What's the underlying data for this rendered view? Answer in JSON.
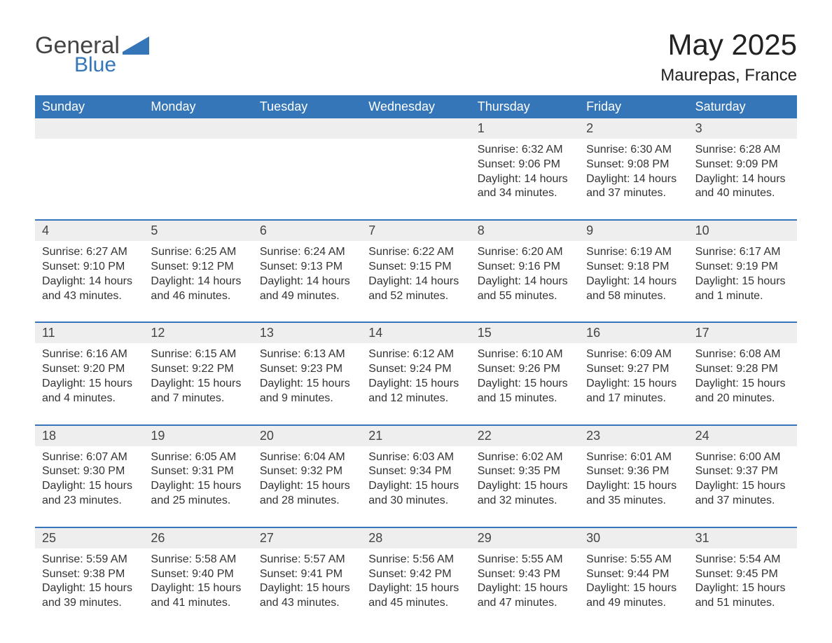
{
  "logo": {
    "general": "General",
    "blue": "Blue"
  },
  "title": "May 2025",
  "location": "Maurepas, France",
  "colors": {
    "header_bg": "#3576b8",
    "header_text": "#ffffff",
    "num_strip_bg": "#eeeeee",
    "rule": "#3576b8",
    "body_text": "#333333",
    "background": "#ffffff"
  },
  "day_names": [
    "Sunday",
    "Monday",
    "Tuesday",
    "Wednesday",
    "Thursday",
    "Friday",
    "Saturday"
  ],
  "weeks": [
    {
      "days": [
        {
          "num": "",
          "sunrise": "",
          "sunset": "",
          "daylight": ""
        },
        {
          "num": "",
          "sunrise": "",
          "sunset": "",
          "daylight": ""
        },
        {
          "num": "",
          "sunrise": "",
          "sunset": "",
          "daylight": ""
        },
        {
          "num": "",
          "sunrise": "",
          "sunset": "",
          "daylight": ""
        },
        {
          "num": "1",
          "sunrise": "Sunrise: 6:32 AM",
          "sunset": "Sunset: 9:06 PM",
          "daylight": "Daylight: 14 hours and 34 minutes."
        },
        {
          "num": "2",
          "sunrise": "Sunrise: 6:30 AM",
          "sunset": "Sunset: 9:08 PM",
          "daylight": "Daylight: 14 hours and 37 minutes."
        },
        {
          "num": "3",
          "sunrise": "Sunrise: 6:28 AM",
          "sunset": "Sunset: 9:09 PM",
          "daylight": "Daylight: 14 hours and 40 minutes."
        }
      ]
    },
    {
      "days": [
        {
          "num": "4",
          "sunrise": "Sunrise: 6:27 AM",
          "sunset": "Sunset: 9:10 PM",
          "daylight": "Daylight: 14 hours and 43 minutes."
        },
        {
          "num": "5",
          "sunrise": "Sunrise: 6:25 AM",
          "sunset": "Sunset: 9:12 PM",
          "daylight": "Daylight: 14 hours and 46 minutes."
        },
        {
          "num": "6",
          "sunrise": "Sunrise: 6:24 AM",
          "sunset": "Sunset: 9:13 PM",
          "daylight": "Daylight: 14 hours and 49 minutes."
        },
        {
          "num": "7",
          "sunrise": "Sunrise: 6:22 AM",
          "sunset": "Sunset: 9:15 PM",
          "daylight": "Daylight: 14 hours and 52 minutes."
        },
        {
          "num": "8",
          "sunrise": "Sunrise: 6:20 AM",
          "sunset": "Sunset: 9:16 PM",
          "daylight": "Daylight: 14 hours and 55 minutes."
        },
        {
          "num": "9",
          "sunrise": "Sunrise: 6:19 AM",
          "sunset": "Sunset: 9:18 PM",
          "daylight": "Daylight: 14 hours and 58 minutes."
        },
        {
          "num": "10",
          "sunrise": "Sunrise: 6:17 AM",
          "sunset": "Sunset: 9:19 PM",
          "daylight": "Daylight: 15 hours and 1 minute."
        }
      ]
    },
    {
      "days": [
        {
          "num": "11",
          "sunrise": "Sunrise: 6:16 AM",
          "sunset": "Sunset: 9:20 PM",
          "daylight": "Daylight: 15 hours and 4 minutes."
        },
        {
          "num": "12",
          "sunrise": "Sunrise: 6:15 AM",
          "sunset": "Sunset: 9:22 PM",
          "daylight": "Daylight: 15 hours and 7 minutes."
        },
        {
          "num": "13",
          "sunrise": "Sunrise: 6:13 AM",
          "sunset": "Sunset: 9:23 PM",
          "daylight": "Daylight: 15 hours and 9 minutes."
        },
        {
          "num": "14",
          "sunrise": "Sunrise: 6:12 AM",
          "sunset": "Sunset: 9:24 PM",
          "daylight": "Daylight: 15 hours and 12 minutes."
        },
        {
          "num": "15",
          "sunrise": "Sunrise: 6:10 AM",
          "sunset": "Sunset: 9:26 PM",
          "daylight": "Daylight: 15 hours and 15 minutes."
        },
        {
          "num": "16",
          "sunrise": "Sunrise: 6:09 AM",
          "sunset": "Sunset: 9:27 PM",
          "daylight": "Daylight: 15 hours and 17 minutes."
        },
        {
          "num": "17",
          "sunrise": "Sunrise: 6:08 AM",
          "sunset": "Sunset: 9:28 PM",
          "daylight": "Daylight: 15 hours and 20 minutes."
        }
      ]
    },
    {
      "days": [
        {
          "num": "18",
          "sunrise": "Sunrise: 6:07 AM",
          "sunset": "Sunset: 9:30 PM",
          "daylight": "Daylight: 15 hours and 23 minutes."
        },
        {
          "num": "19",
          "sunrise": "Sunrise: 6:05 AM",
          "sunset": "Sunset: 9:31 PM",
          "daylight": "Daylight: 15 hours and 25 minutes."
        },
        {
          "num": "20",
          "sunrise": "Sunrise: 6:04 AM",
          "sunset": "Sunset: 9:32 PM",
          "daylight": "Daylight: 15 hours and 28 minutes."
        },
        {
          "num": "21",
          "sunrise": "Sunrise: 6:03 AM",
          "sunset": "Sunset: 9:34 PM",
          "daylight": "Daylight: 15 hours and 30 minutes."
        },
        {
          "num": "22",
          "sunrise": "Sunrise: 6:02 AM",
          "sunset": "Sunset: 9:35 PM",
          "daylight": "Daylight: 15 hours and 32 minutes."
        },
        {
          "num": "23",
          "sunrise": "Sunrise: 6:01 AM",
          "sunset": "Sunset: 9:36 PM",
          "daylight": "Daylight: 15 hours and 35 minutes."
        },
        {
          "num": "24",
          "sunrise": "Sunrise: 6:00 AM",
          "sunset": "Sunset: 9:37 PM",
          "daylight": "Daylight: 15 hours and 37 minutes."
        }
      ]
    },
    {
      "days": [
        {
          "num": "25",
          "sunrise": "Sunrise: 5:59 AM",
          "sunset": "Sunset: 9:38 PM",
          "daylight": "Daylight: 15 hours and 39 minutes."
        },
        {
          "num": "26",
          "sunrise": "Sunrise: 5:58 AM",
          "sunset": "Sunset: 9:40 PM",
          "daylight": "Daylight: 15 hours and 41 minutes."
        },
        {
          "num": "27",
          "sunrise": "Sunrise: 5:57 AM",
          "sunset": "Sunset: 9:41 PM",
          "daylight": "Daylight: 15 hours and 43 minutes."
        },
        {
          "num": "28",
          "sunrise": "Sunrise: 5:56 AM",
          "sunset": "Sunset: 9:42 PM",
          "daylight": "Daylight: 15 hours and 45 minutes."
        },
        {
          "num": "29",
          "sunrise": "Sunrise: 5:55 AM",
          "sunset": "Sunset: 9:43 PM",
          "daylight": "Daylight: 15 hours and 47 minutes."
        },
        {
          "num": "30",
          "sunrise": "Sunrise: 5:55 AM",
          "sunset": "Sunset: 9:44 PM",
          "daylight": "Daylight: 15 hours and 49 minutes."
        },
        {
          "num": "31",
          "sunrise": "Sunrise: 5:54 AM",
          "sunset": "Sunset: 9:45 PM",
          "daylight": "Daylight: 15 hours and 51 minutes."
        }
      ]
    }
  ]
}
